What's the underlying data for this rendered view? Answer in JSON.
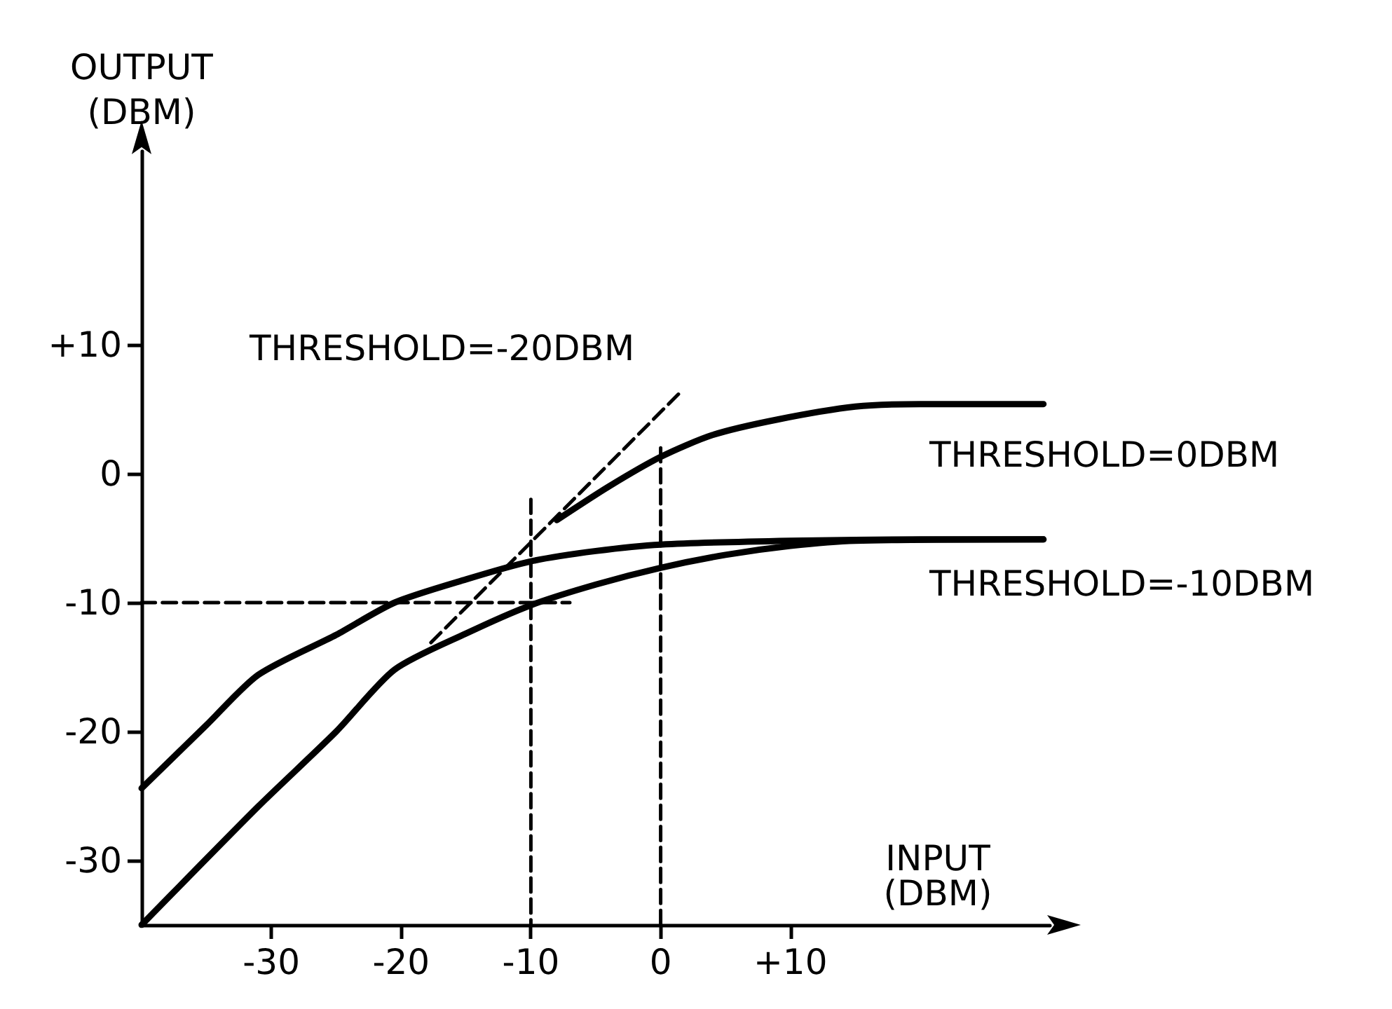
{
  "chart_data": {
    "type": "line",
    "xlabel": "INPUT (DBM)",
    "ylabel": "OUTPUT (DBM)",
    "xlim": [
      -40,
      30
    ],
    "xticks": [
      -30,
      -20,
      -10,
      0,
      {
        "value": 10,
        "label": "+10"
      }
    ],
    "ylim": [
      -35,
      25
    ],
    "yticks": [
      {
        "value": 10,
        "label": "+10"
      },
      0,
      -10,
      -20,
      -30
    ],
    "grid": false,
    "marker": "none",
    "series": [
      {
        "color": "#000000",
        "x": [
          -40,
          -35,
          -31,
          -25,
          -20.5,
          -15,
          -10,
          -5,
          0,
          10,
          20,
          29.5
        ],
        "values": [
          -24.4,
          -19.5,
          -15.6,
          -12.5,
          -10,
          -8.2,
          -6.8,
          -6,
          -5.5,
          -5.2,
          -5.1,
          -5.1
        ]
      },
      {
        "color": "#000000",
        "x": [
          -40,
          -31,
          -25,
          -20.5,
          -15,
          -10,
          -5,
          0,
          5,
          10,
          15,
          29.5
        ],
        "values": [
          -35,
          -25.8,
          -20,
          -15.2,
          -12.4,
          -10.2,
          -8.6,
          -7.3,
          -6.3,
          -5.6,
          -5.2,
          -5.1
        ]
      },
      {
        "color": "#000000",
        "x": [
          -8,
          -4,
          0,
          4,
          9,
          15,
          20,
          29.5
        ],
        "values": [
          -3.6,
          -1,
          1.3,
          3,
          4.2,
          5.2,
          5.4,
          5.4
        ]
      },
      {
        "color": "#000000",
        "line_style": "dashed",
        "x": [
          -17.7,
          1.7
        ],
        "values": [
          -13.1,
          6.5
        ]
      },
      {
        "color": "#000000",
        "line_style": "dashed",
        "x": [
          -40,
          -7
        ],
        "values": [
          -10,
          -10
        ]
      },
      {
        "color": "#000000",
        "line_style": "dashed",
        "x": [
          -10,
          -10
        ],
        "values": [
          -2,
          -35
        ]
      },
      {
        "color": "#000000",
        "line_style": "dashed",
        "x": [
          0,
          0
        ],
        "values": [
          2,
          -35
        ]
      }
    ],
    "annotations": [
      "THRESHOLD=-20DBM",
      "THRESHOLD=0DBM",
      "THRESHOLD=-10DBM"
    ]
  }
}
